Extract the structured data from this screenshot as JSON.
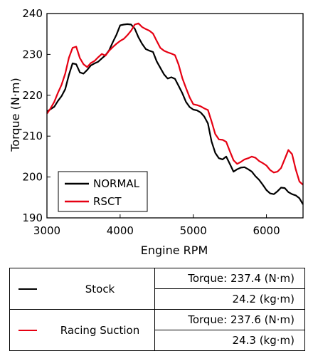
{
  "chart_data": {
    "type": "line",
    "xlabel": "Engine RPM",
    "ylabel": "Torque (N·m)",
    "xlim": [
      3000,
      6500
    ],
    "ylim": [
      190,
      240
    ],
    "x_ticks": [
      "3000",
      "4000",
      "5000",
      "6000"
    ],
    "y_ticks": [
      "190",
      "200",
      "210",
      "220",
      "230",
      "240"
    ],
    "grid": false,
    "legend_position": "bottom-left",
    "series": [
      {
        "name": "NORMAL",
        "color": "#000000",
        "points": [
          [
            3000,
            216
          ],
          [
            3050,
            216.6
          ],
          [
            3100,
            217.2
          ],
          [
            3150,
            218.6
          ],
          [
            3200,
            219.8
          ],
          [
            3250,
            221.5
          ],
          [
            3300,
            225
          ],
          [
            3350,
            227.8
          ],
          [
            3400,
            227.6
          ],
          [
            3450,
            225.6
          ],
          [
            3500,
            225.3
          ],
          [
            3550,
            226.2
          ],
          [
            3600,
            227.3
          ],
          [
            3650,
            227.8
          ],
          [
            3700,
            228.2
          ],
          [
            3750,
            229
          ],
          [
            3800,
            229.8
          ],
          [
            3850,
            231
          ],
          [
            3900,
            233
          ],
          [
            3950,
            234.8
          ],
          [
            4000,
            237.1
          ],
          [
            4050,
            237.3
          ],
          [
            4100,
            237.4
          ],
          [
            4150,
            237.3
          ],
          [
            4200,
            236.3
          ],
          [
            4250,
            234.2
          ],
          [
            4300,
            232.6
          ],
          [
            4350,
            231.3
          ],
          [
            4400,
            230.9
          ],
          [
            4450,
            230.6
          ],
          [
            4500,
            228.3
          ],
          [
            4550,
            226.7
          ],
          [
            4600,
            225.1
          ],
          [
            4650,
            224.1
          ],
          [
            4700,
            224.4
          ],
          [
            4750,
            224
          ],
          [
            4800,
            222.3
          ],
          [
            4850,
            220.5
          ],
          [
            4900,
            218.4
          ],
          [
            4950,
            217.1
          ],
          [
            5000,
            216.5
          ],
          [
            5050,
            216.3
          ],
          [
            5100,
            215.8
          ],
          [
            5150,
            214.8
          ],
          [
            5200,
            213.1
          ],
          [
            5250,
            208.7
          ],
          [
            5300,
            205.9
          ],
          [
            5350,
            204.6
          ],
          [
            5400,
            204.3
          ],
          [
            5450,
            205
          ],
          [
            5500,
            203.2
          ],
          [
            5550,
            201.3
          ],
          [
            5600,
            201.9
          ],
          [
            5650,
            202.3
          ],
          [
            5700,
            202.4
          ],
          [
            5750,
            201.9
          ],
          [
            5800,
            201.3
          ],
          [
            5850,
            200.2
          ],
          [
            5900,
            199.3
          ],
          [
            5950,
            198.1
          ],
          [
            6000,
            196.8
          ],
          [
            6050,
            196
          ],
          [
            6100,
            195.8
          ],
          [
            6150,
            196.5
          ],
          [
            6200,
            197.4
          ],
          [
            6250,
            197.3
          ],
          [
            6300,
            196.3
          ],
          [
            6350,
            195.8
          ],
          [
            6400,
            195.5
          ],
          [
            6450,
            194.8
          ],
          [
            6500,
            193.3
          ]
        ]
      },
      {
        "name": "RSCT",
        "color": "#e60012",
        "points": [
          [
            3000,
            215.5
          ],
          [
            3050,
            216.8
          ],
          [
            3100,
            218.4
          ],
          [
            3150,
            220.6
          ],
          [
            3200,
            222.6
          ],
          [
            3250,
            225.3
          ],
          [
            3300,
            229.2
          ],
          [
            3350,
            231.6
          ],
          [
            3400,
            231.9
          ],
          [
            3450,
            229.1
          ],
          [
            3500,
            227.6
          ],
          [
            3550,
            226.9
          ],
          [
            3600,
            227.9
          ],
          [
            3650,
            228.4
          ],
          [
            3700,
            229.3
          ],
          [
            3750,
            230.1
          ],
          [
            3800,
            229.7
          ],
          [
            3850,
            230.9
          ],
          [
            3900,
            231.8
          ],
          [
            3950,
            232.6
          ],
          [
            4000,
            233.3
          ],
          [
            4050,
            233.8
          ],
          [
            4100,
            234.7
          ],
          [
            4150,
            235.8
          ],
          [
            4200,
            237.3
          ],
          [
            4250,
            237.6
          ],
          [
            4300,
            236.7
          ],
          [
            4350,
            236.2
          ],
          [
            4400,
            235.8
          ],
          [
            4450,
            235.1
          ],
          [
            4500,
            233.3
          ],
          [
            4550,
            231.6
          ],
          [
            4600,
            230.9
          ],
          [
            4650,
            230.5
          ],
          [
            4700,
            230.2
          ],
          [
            4750,
            229.8
          ],
          [
            4800,
            227.5
          ],
          [
            4850,
            224.2
          ],
          [
            4900,
            221.8
          ],
          [
            4950,
            219.5
          ],
          [
            5000,
            217.8
          ],
          [
            5050,
            217.6
          ],
          [
            5100,
            217.3
          ],
          [
            5150,
            216.8
          ],
          [
            5200,
            216.4
          ],
          [
            5250,
            213.6
          ],
          [
            5300,
            210.5
          ],
          [
            5350,
            209.2
          ],
          [
            5400,
            209.1
          ],
          [
            5450,
            208.6
          ],
          [
            5500,
            206.3
          ],
          [
            5550,
            204.1
          ],
          [
            5600,
            203.2
          ],
          [
            5650,
            203.7
          ],
          [
            5700,
            204.3
          ],
          [
            5750,
            204.6
          ],
          [
            5800,
            205
          ],
          [
            5850,
            204.7
          ],
          [
            5900,
            203.9
          ],
          [
            5950,
            203.4
          ],
          [
            6000,
            202.8
          ],
          [
            6050,
            201.7
          ],
          [
            6100,
            201.1
          ],
          [
            6150,
            201.3
          ],
          [
            6200,
            202.2
          ],
          [
            6250,
            204.4
          ],
          [
            6300,
            206.6
          ],
          [
            6350,
            205.6
          ],
          [
            6400,
            201.9
          ],
          [
            6450,
            198.9
          ],
          [
            6500,
            198.1
          ]
        ]
      }
    ]
  },
  "summary_table": {
    "rows": [
      {
        "name": "Stock",
        "color": "#000000",
        "torque_nm": "Torque: 237.4 (N·m)",
        "torque_kgm": "24.2 (kg·m)"
      },
      {
        "name": "Racing Suction",
        "color": "#e60012",
        "torque_nm": "Torque: 237.6 (N·m)",
        "torque_kgm": "24.3 (kg·m)"
      }
    ]
  }
}
